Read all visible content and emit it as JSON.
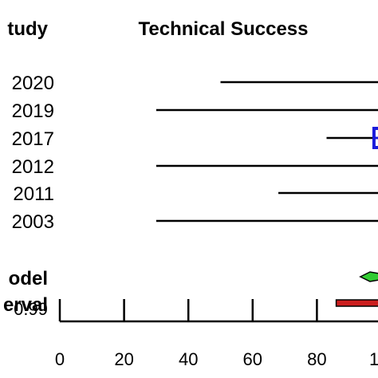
{
  "chart_data": {
    "type": "forest",
    "title": "Technical Success",
    "column_header": "tudy",
    "xlabel": "",
    "xlim": [
      0,
      100
    ],
    "x_ticks": [
      "0",
      "20",
      "40",
      "60",
      "80",
      "1"
    ],
    "studies": [
      {
        "label": "2020",
        "ci_low": 50,
        "ci_high": 100
      },
      {
        "label": "2019",
        "ci_low": 30,
        "ci_high": 100
      },
      {
        "label": "2017",
        "ci_low": 83,
        "ci_high": 100,
        "estimate": 98.5
      },
      {
        "label": "2012",
        "ci_low": 30,
        "ci_high": 100
      },
      {
        "label": "2011",
        "ci_low": 68,
        "ci_high": 100
      },
      {
        "label": "2003",
        "ci_low": 30,
        "ci_high": 100
      }
    ],
    "summary_labels": [
      "odel",
      "erval"
    ],
    "summary": {
      "estimate": 99,
      "ci_low": 94,
      "ci_high": 100
    },
    "prediction_interval": {
      "low": 86,
      "high": 100
    },
    "extra_label": "0.99",
    "colors": {
      "study_marker": "#1a1adb",
      "summary_diamond": "#33cc33",
      "prediction_bar": "#cc1f1f"
    }
  }
}
